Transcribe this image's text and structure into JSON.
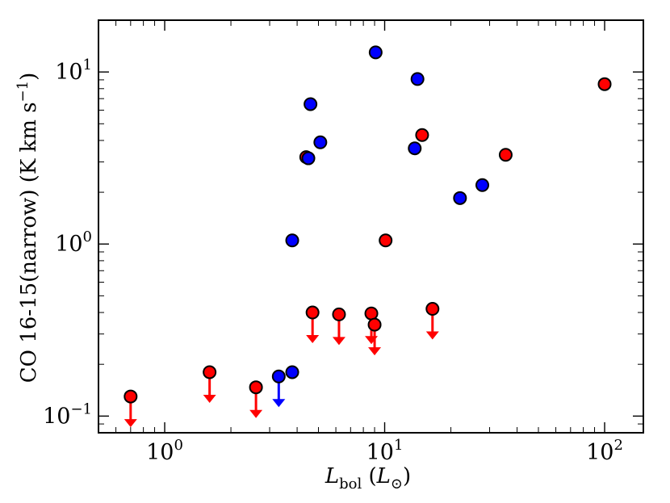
{
  "chart_data": {
    "type": "scatter",
    "xscale": "log",
    "yscale": "log",
    "xlim": [
      0.5,
      150
    ],
    "ylim": [
      0.08,
      20
    ],
    "grid": false,
    "xlabel": {
      "main": "L",
      "sub": "bol",
      "unit_open": " (",
      "unit_main": "L",
      "unit_sub": "⊙",
      "unit_close": ")"
    },
    "ylabel": {
      "main": "CO 16-15(narrow) (K km s",
      "sup": "−1",
      "close": ")"
    },
    "xticks": [
      {
        "value": 1,
        "base": "10",
        "exp": "0"
      },
      {
        "value": 10,
        "base": "10",
        "exp": "1"
      },
      {
        "value": 100,
        "base": "10",
        "exp": "2"
      }
    ],
    "yticks": [
      {
        "value": 0.1,
        "base": "10",
        "exp": "−1"
      },
      {
        "value": 1,
        "base": "10",
        "exp": "0"
      },
      {
        "value": 10,
        "base": "10",
        "exp": "1"
      }
    ],
    "series": [
      {
        "color": "#ff0000",
        "detections": [
          {
            "x": 4.4,
            "y": 3.2
          },
          {
            "x": 10.1,
            "y": 1.05
          },
          {
            "x": 14.8,
            "y": 4.3
          },
          {
            "x": 35.5,
            "y": 3.3
          },
          {
            "x": 100,
            "y": 8.5
          }
        ],
        "upper_limits": [
          {
            "x": 0.7,
            "y": 0.13
          },
          {
            "x": 1.6,
            "y": 0.18
          },
          {
            "x": 2.6,
            "y": 0.147
          },
          {
            "x": 4.7,
            "y": 0.4
          },
          {
            "x": 6.2,
            "y": 0.39
          },
          {
            "x": 8.7,
            "y": 0.395
          },
          {
            "x": 9.0,
            "y": 0.34
          },
          {
            "x": 16.5,
            "y": 0.42
          }
        ]
      },
      {
        "color": "#0000ff",
        "detections": [
          {
            "x": 3.8,
            "y": 1.05
          },
          {
            "x": 3.8,
            "y": 0.18
          },
          {
            "x": 4.5,
            "y": 3.15
          },
          {
            "x": 4.6,
            "y": 6.5
          },
          {
            "x": 5.1,
            "y": 3.9
          },
          {
            "x": 9.1,
            "y": 13.0
          },
          {
            "x": 13.7,
            "y": 3.6
          },
          {
            "x": 14.1,
            "y": 9.1
          },
          {
            "x": 22.0,
            "y": 1.85
          },
          {
            "x": 27.8,
            "y": 2.2
          }
        ],
        "upper_limits": [
          {
            "x": 3.3,
            "y": 0.17
          }
        ]
      }
    ]
  }
}
